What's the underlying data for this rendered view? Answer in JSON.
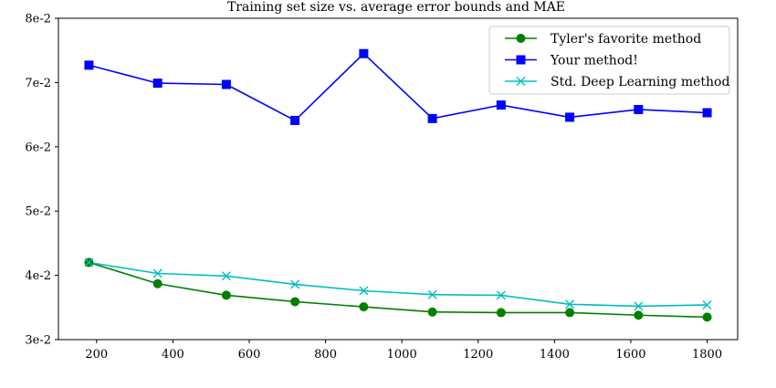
{
  "chart_data": {
    "type": "line",
    "title": "Training set size vs. average error bounds and MAE",
    "xlabel": "",
    "ylabel": "",
    "x": [
      180,
      360,
      540,
      720,
      900,
      1080,
      1260,
      1440,
      1620,
      1800
    ],
    "xlim": [
      100,
      1880
    ],
    "ylim": [
      0.03,
      0.08
    ],
    "xticks": [
      200,
      400,
      600,
      800,
      1000,
      1200,
      1400,
      1600,
      1800
    ],
    "xtick_labels": [
      "200",
      "400",
      "600",
      "800",
      "1000",
      "1200",
      "1400",
      "1600",
      "1800"
    ],
    "yticks": [
      0.03,
      0.04,
      0.05,
      0.06,
      0.07,
      0.08
    ],
    "ytick_labels": [
      "3e-2",
      "4e-2",
      "5e-2",
      "6e-2",
      "7e-2",
      "8e-2"
    ],
    "grid": false,
    "legend_position": "top-right",
    "series": [
      {
        "name": "Tyler's favorite method",
        "color": "#008000",
        "marker": "circle",
        "values": [
          0.042,
          0.0387,
          0.0369,
          0.0359,
          0.0351,
          0.0343,
          0.0342,
          0.0342,
          0.0338,
          0.0335
        ]
      },
      {
        "name": "Your method!",
        "color": "#0000ff",
        "marker": "square",
        "values": [
          0.0727,
          0.0699,
          0.0697,
          0.0641,
          0.0745,
          0.0644,
          0.0665,
          0.0646,
          0.0658,
          0.0653
        ]
      },
      {
        "name": "Std. Deep Learning method",
        "color": "#00bfbf",
        "marker": "x",
        "values": [
          0.042,
          0.0403,
          0.0399,
          0.0386,
          0.0376,
          0.037,
          0.0369,
          0.0355,
          0.0352,
          0.0354
        ]
      }
    ]
  }
}
